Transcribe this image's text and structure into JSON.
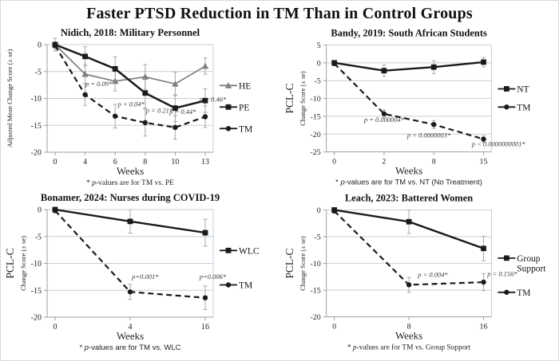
{
  "title": "Faster PTSD Reduction in TM Than in Control Groups",
  "colors": {
    "black": "#1a1a1a",
    "gray_series": "#7f7f7f",
    "gridline": "#c4cfd9",
    "axis": "#9aa0a6",
    "error_bar": "#a9a9a9",
    "annotation": "#3a3a3a"
  },
  "chart_data": [
    {
      "type": "line",
      "title": "Nidich, 2018: Military Personnel",
      "ylabel_lines": [
        "Adjusted Mean Change Score (± se)"
      ],
      "xlabel": "Weeks",
      "footnote": "* p-values are for TM vs. PE",
      "footnote_font": "serif",
      "categories": [
        "0",
        "4",
        "6",
        "8",
        "10",
        "13"
      ],
      "ylim": [
        0,
        -20
      ],
      "yticks": [
        0,
        -5,
        -10,
        -15,
        -20
      ],
      "grid": true,
      "legend_position": "right",
      "series": [
        {
          "name": "HE",
          "line": "solid",
          "marker": "triangle",
          "color": "gray",
          "width": 1.7,
          "values": [
            0,
            -5.5,
            -6.8,
            -6.0,
            -7.3,
            -4.0
          ],
          "errors": [
            1.2,
            1.8,
            1.8,
            2.3,
            2.2,
            1.5
          ]
        },
        {
          "name": "PE",
          "line": "solid",
          "marker": "square",
          "color": "black",
          "width": 2.5,
          "values": [
            0,
            -2.2,
            -4.5,
            -9.0,
            -11.8,
            -10.4
          ],
          "errors": [
            0.5,
            1.8,
            2.2,
            2.8,
            2.5,
            2.2
          ]
        },
        {
          "name": "TM",
          "line": "dashed",
          "marker": "circle",
          "color": "black",
          "width": 2.2,
          "values": [
            -0.2,
            -9.3,
            -13.3,
            -14.5,
            -15.4,
            -13.4
          ],
          "errors": [
            0.5,
            2.0,
            2.2,
            2.5,
            2.2,
            2.0
          ]
        }
      ],
      "annotations": [
        {
          "x": 1.45,
          "y": -7.7,
          "text": "p = 0.09*"
        },
        {
          "x": 2.53,
          "y": -11.5,
          "text": "p = 0.04*"
        },
        {
          "x": 3.47,
          "y": -12.7,
          "text": "p = 0.21*"
        },
        {
          "x": 4.25,
          "y": -12.9,
          "text": "p = 0.44*"
        },
        {
          "x": 5.25,
          "y": -10.6,
          "text": "p = 0.46*"
        }
      ],
      "legend_pos": [
        0.38,
        0.58,
        0.78
      ]
    },
    {
      "type": "line",
      "title": "Bandy, 2019: South African Students",
      "ylabel_lines": [
        "PCL-C",
        "Change Score (± se)"
      ],
      "xlabel": "Weeks",
      "footnote": "* p-values are for TM vs. NT (No Treatment)",
      "footnote_font": "sans",
      "categories": [
        "0",
        "2",
        "8",
        "15"
      ],
      "ylim": [
        5,
        -25
      ],
      "yticks": [
        5,
        0,
        -5,
        -10,
        -15,
        -20,
        -25
      ],
      "grid": true,
      "legend_position": "right",
      "series": [
        {
          "name": "NT",
          "line": "solid",
          "marker": "square",
          "color": "black",
          "width": 2.4,
          "values": [
            0,
            -2.2,
            -1.2,
            0.2
          ],
          "errors": [
            0.6,
            1.6,
            1.8,
            1.3
          ]
        },
        {
          "name": "TM",
          "line": "dashed",
          "marker": "circle",
          "color": "black",
          "width": 2.2,
          "values": [
            -0.2,
            -14.3,
            -17.3,
            -21.4
          ],
          "errors": [
            0.6,
            1.1,
            1.1,
            0.9
          ]
        }
      ],
      "annotations": [
        {
          "x": 1.0,
          "y": -16.6,
          "text": "p = 0.000004*"
        },
        {
          "x": 1.9,
          "y": -20.9,
          "text": "p = 0.0000003*"
        },
        {
          "x": 3.3,
          "y": -23.4,
          "text": "p < 0.0000000001*"
        }
      ],
      "legend_pos": [
        0.41,
        0.58
      ]
    },
    {
      "type": "line",
      "title": "Bonamer, 2024: Nurses during COVID-19",
      "ylabel_lines": [
        "PCL-C",
        "Change Score (± se)"
      ],
      "xlabel": "Weeks",
      "footnote": "* p-values are for TM vs. WLC",
      "footnote_font": "sans",
      "categories": [
        "0",
        "4",
        "16"
      ],
      "ylim": [
        0,
        -20
      ],
      "yticks": [
        0,
        -5,
        -10,
        -15,
        -20
      ],
      "grid": true,
      "legend_position": "right",
      "series": [
        {
          "name": "WLC",
          "line": "solid",
          "marker": "square",
          "color": "black",
          "width": 2.4,
          "values": [
            0,
            -2.2,
            -4.3
          ],
          "errors": [
            0.4,
            2.2,
            2.5
          ]
        },
        {
          "name": "TM",
          "line": "dashed",
          "marker": "circle",
          "color": "black",
          "width": 2.2,
          "values": [
            -0.2,
            -15.3,
            -16.4
          ],
          "errors": [
            0.4,
            1.4,
            2.2
          ]
        }
      ],
      "annotations": [
        {
          "x": 1.2,
          "y": -12.9,
          "text": "p=0.001*"
        },
        {
          "x": 2.1,
          "y": -12.9,
          "text": "p=0.006*"
        }
      ],
      "legend_pos": [
        0.38,
        0.7
      ]
    },
    {
      "type": "line",
      "title": "Leach, 2023: Battered Women",
      "ylabel_lines": [
        "PCL-C",
        "Change Score (± se)"
      ],
      "xlabel": "Weeks",
      "footnote": "* p-values are for TM vs. Group Support",
      "footnote_font": "serif",
      "categories": [
        "0",
        "8",
        "16"
      ],
      "ylim": [
        0,
        -20
      ],
      "yticks": [
        0,
        -5,
        -10,
        -15,
        -20
      ],
      "grid": true,
      "legend_position": "right",
      "series": [
        {
          "name": "Group Support",
          "legend_lines": [
            "Group",
            "Support"
          ],
          "line": "solid",
          "marker": "square",
          "color": "black",
          "width": 2.4,
          "values": [
            0,
            -2.2,
            -7.2
          ],
          "errors": [
            0.3,
            2.2,
            2.3
          ]
        },
        {
          "name": "TM",
          "line": "dashed",
          "marker": "circle",
          "color": "black",
          "width": 2.2,
          "values": [
            -0.2,
            -14.0,
            -13.5
          ],
          "errors": [
            0.4,
            1.4,
            1.6
          ]
        }
      ],
      "annotations": [
        {
          "x": 1.32,
          "y": -12.5,
          "text": "p = 0.004*"
        },
        {
          "x": 2.25,
          "y": -12.4,
          "text": "p = 0.156*"
        }
      ],
      "legend_pos": [
        0.45,
        0.77
      ]
    }
  ]
}
